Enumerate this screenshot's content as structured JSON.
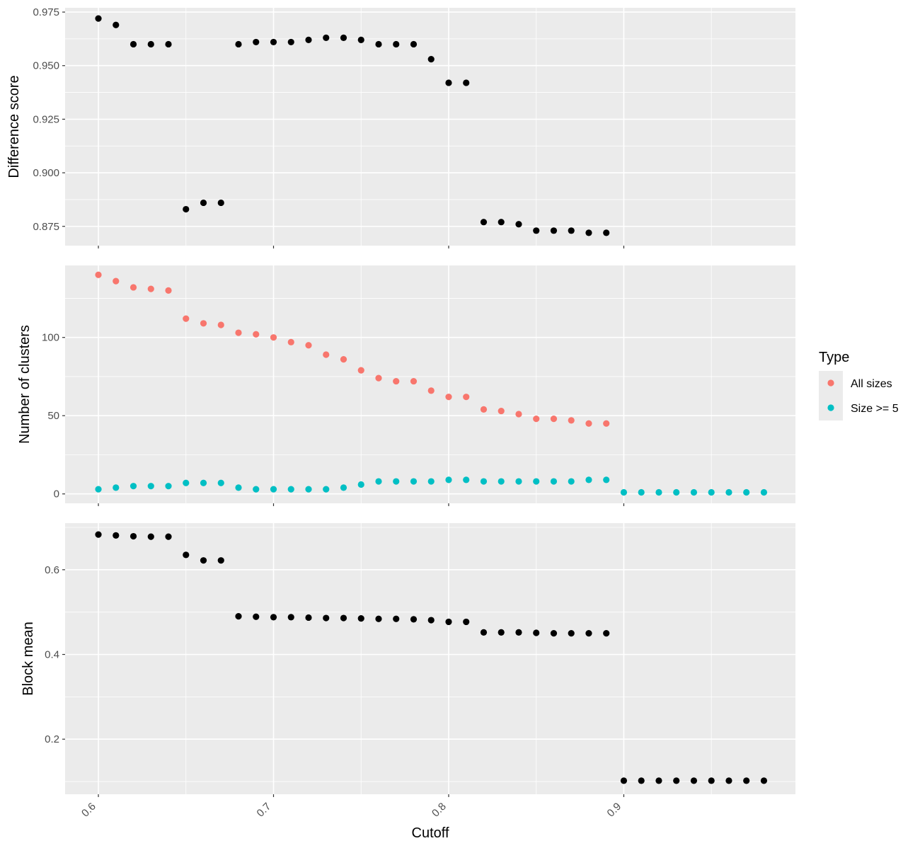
{
  "chart_data": {
    "type": "scatter",
    "xlabel": "Cutoff",
    "x_ticks": [
      0.6,
      0.7,
      0.8,
      0.9
    ],
    "xlim": [
      0.581,
      0.998
    ],
    "legend": {
      "title": "Type",
      "position": "right",
      "entries": [
        {
          "label": "All sizes",
          "color": "#F8766D"
        },
        {
          "label": "Size >= 5",
          "color": "#00BFC4"
        }
      ]
    },
    "panels": [
      {
        "ylabel": "Difference score",
        "ylim": [
          0.866,
          0.977
        ],
        "y_ticks": [
          0.875,
          0.9,
          0.925,
          0.95,
          0.975
        ],
        "y_tick_labels": [
          "0.875",
          "0.900",
          "0.925",
          "0.950",
          "0.975"
        ],
        "grid": true,
        "series": [
          {
            "color": "#000000",
            "x": [
              0.6,
              0.61,
              0.62,
              0.63,
              0.64,
              0.65,
              0.66,
              0.67,
              0.68,
              0.69,
              0.7,
              0.71,
              0.72,
              0.73,
              0.74,
              0.75,
              0.76,
              0.77,
              0.78,
              0.79,
              0.8,
              0.81,
              0.82,
              0.83,
              0.84,
              0.85,
              0.86,
              0.87,
              0.88,
              0.89
            ],
            "y": [
              0.972,
              0.969,
              0.96,
              0.96,
              0.96,
              0.883,
              0.886,
              0.886,
              0.96,
              0.961,
              0.961,
              0.961,
              0.962,
              0.963,
              0.963,
              0.962,
              0.96,
              0.96,
              0.96,
              0.953,
              0.942,
              0.942,
              0.877,
              0.877,
              0.876,
              0.873,
              0.873,
              0.873,
              0.872,
              0.872
            ]
          }
        ]
      },
      {
        "ylabel": "Number of clusters",
        "ylim": [
          -6,
          146
        ],
        "y_ticks": [
          0,
          50,
          100
        ],
        "y_tick_labels": [
          "0",
          "50",
          "100"
        ],
        "grid": true,
        "series": [
          {
            "name": "All sizes",
            "color": "#F8766D",
            "x": [
              0.6,
              0.61,
              0.62,
              0.63,
              0.64,
              0.65,
              0.66,
              0.67,
              0.68,
              0.69,
              0.7,
              0.71,
              0.72,
              0.73,
              0.74,
              0.75,
              0.76,
              0.77,
              0.78,
              0.79,
              0.8,
              0.81,
              0.82,
              0.83,
              0.84,
              0.85,
              0.86,
              0.87,
              0.88,
              0.89
            ],
            "y": [
              140,
              136,
              132,
              131,
              130,
              112,
              109,
              108,
              103,
              102,
              100,
              97,
              95,
              89,
              86,
              79,
              74,
              72,
              72,
              66,
              62,
              62,
              54,
              53,
              51,
              48,
              48,
              47,
              45,
              45
            ]
          },
          {
            "name": "Size >= 5",
            "color": "#00BFC4",
            "x": [
              0.6,
              0.61,
              0.62,
              0.63,
              0.64,
              0.65,
              0.66,
              0.67,
              0.68,
              0.69,
              0.7,
              0.71,
              0.72,
              0.73,
              0.74,
              0.75,
              0.76,
              0.77,
              0.78,
              0.79,
              0.8,
              0.81,
              0.82,
              0.83,
              0.84,
              0.85,
              0.86,
              0.87,
              0.88,
              0.89,
              0.9,
              0.91,
              0.92,
              0.93,
              0.94,
              0.95,
              0.96,
              0.97,
              0.98
            ],
            "y": [
              3,
              4,
              5,
              5,
              5,
              7,
              7,
              7,
              4,
              3,
              3,
              3,
              3,
              3,
              4,
              6,
              8,
              8,
              8,
              8,
              9,
              9,
              8,
              8,
              8,
              8,
              8,
              8,
              9,
              9,
              1,
              1,
              1,
              1,
              1,
              1,
              1,
              1,
              1
            ]
          }
        ]
      },
      {
        "ylabel": "Block mean",
        "ylim": [
          0.07,
          0.71
        ],
        "y_ticks": [
          0.2,
          0.4,
          0.6
        ],
        "y_tick_labels": [
          "0.2",
          "0.4",
          "0.6"
        ],
        "grid": true,
        "series": [
          {
            "color": "#000000",
            "x": [
              0.6,
              0.61,
              0.62,
              0.63,
              0.64,
              0.65,
              0.66,
              0.67,
              0.68,
              0.69,
              0.7,
              0.71,
              0.72,
              0.73,
              0.74,
              0.75,
              0.76,
              0.77,
              0.78,
              0.79,
              0.8,
              0.81,
              0.82,
              0.83,
              0.84,
              0.85,
              0.86,
              0.87,
              0.88,
              0.89,
              0.9,
              0.91,
              0.92,
              0.93,
              0.94,
              0.95,
              0.96,
              0.97,
              0.98
            ],
            "y": [
              0.683,
              0.681,
              0.679,
              0.678,
              0.678,
              0.635,
              0.622,
              0.622,
              0.49,
              0.489,
              0.488,
              0.488,
              0.487,
              0.486,
              0.486,
              0.485,
              0.484,
              0.484,
              0.483,
              0.481,
              0.477,
              0.477,
              0.452,
              0.452,
              0.452,
              0.451,
              0.45,
              0.45,
              0.45,
              0.45,
              0.102,
              0.102,
              0.102,
              0.102,
              0.102,
              0.102,
              0.102,
              0.102,
              0.102
            ]
          }
        ]
      }
    ]
  }
}
